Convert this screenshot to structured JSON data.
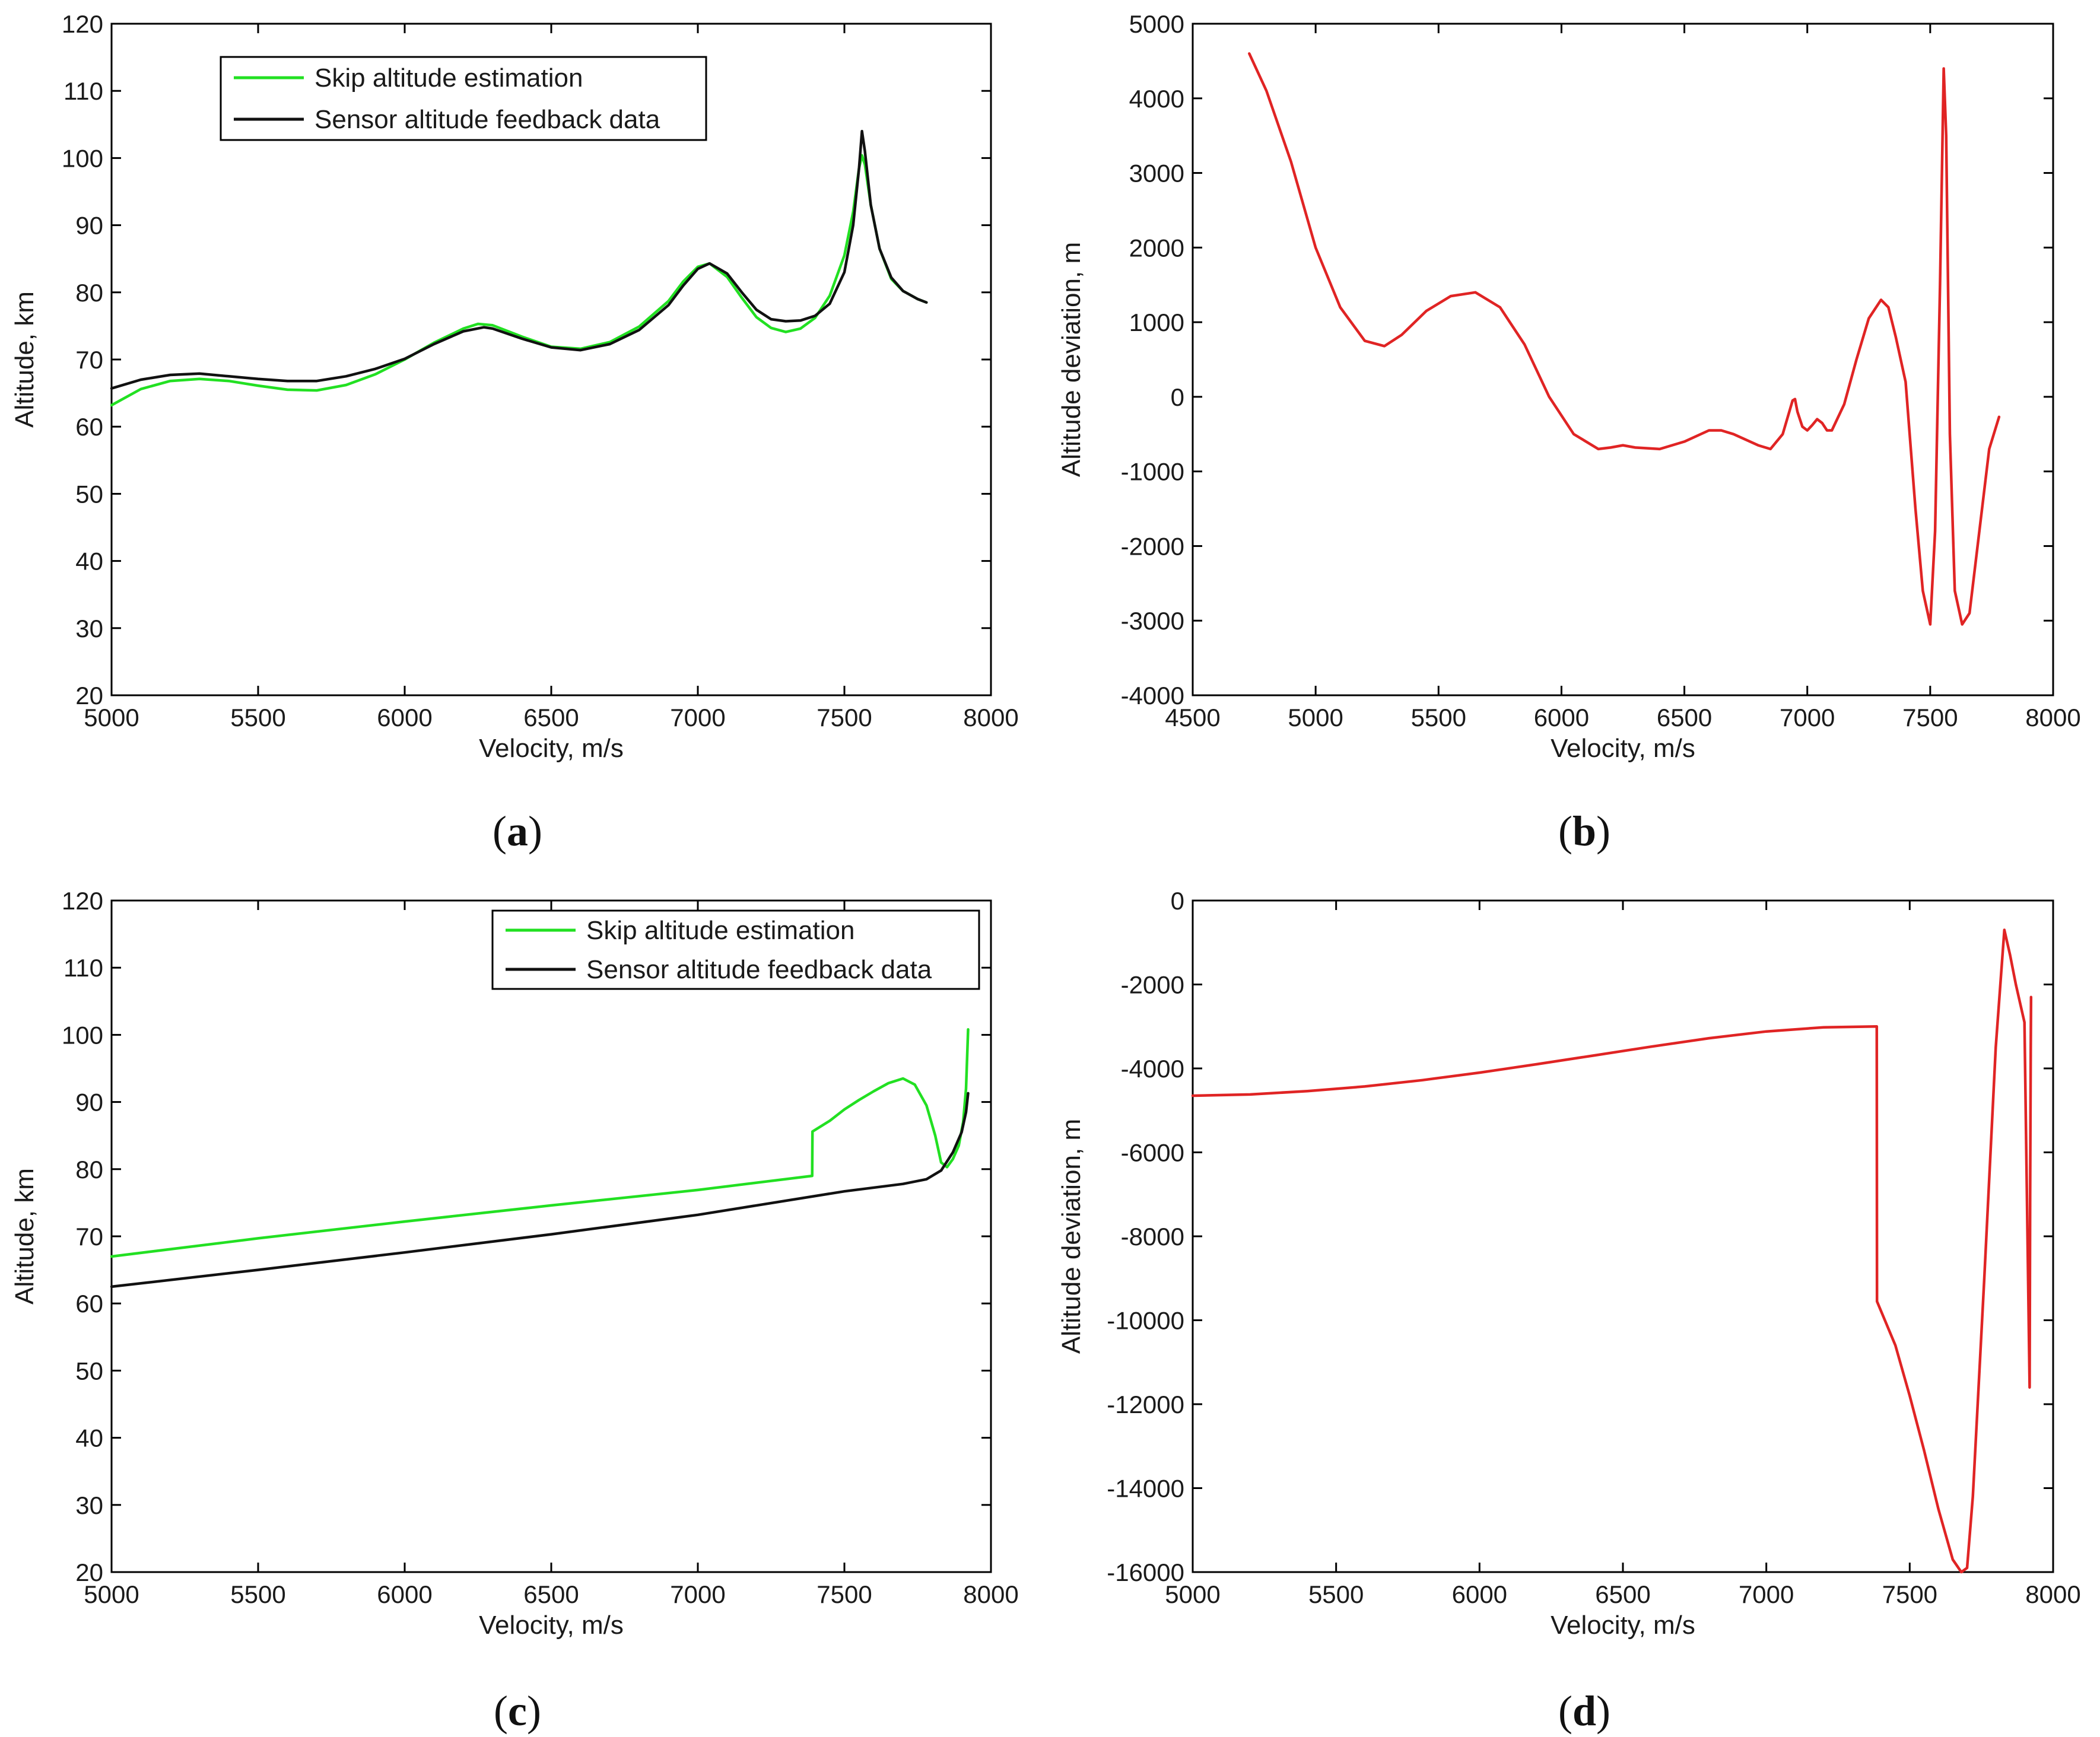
{
  "figure_title": "",
  "colors": {
    "green": "#22e022",
    "black": "#111111",
    "red": "#e02424",
    "axis": "#000000"
  },
  "chart_data": [
    {
      "id": "a",
      "panel_label": "a",
      "type": "line",
      "xlabel": "Velocity, m/s",
      "ylabel": "Altitude, km",
      "xlim": [
        5000,
        8000
      ],
      "ylim": [
        20,
        120
      ],
      "xticks": [
        5000,
        5500,
        6000,
        6500,
        7000,
        7500,
        8000
      ],
      "yticks": [
        20,
        30,
        40,
        50,
        60,
        70,
        80,
        90,
        100,
        110,
        120
      ],
      "legend": {
        "placement": "top-left",
        "entries": [
          "Skip altitude estimation",
          "Sensor altitude feedback data"
        ]
      },
      "series": [
        {
          "name": "Skip altitude estimation",
          "color": "#22e022",
          "x": [
            5000,
            5100,
            5200,
            5300,
            5400,
            5500,
            5600,
            5700,
            5800,
            5900,
            6000,
            6100,
            6200,
            6250,
            6300,
            6400,
            6500,
            6600,
            6700,
            6800,
            6900,
            6950,
            7000,
            7040,
            7100,
            7150,
            7200,
            7250,
            7300,
            7350,
            7400,
            7450,
            7500,
            7530,
            7550,
            7560,
            7570,
            7590,
            7620,
            7660,
            7700,
            7750,
            7780
          ],
          "y": [
            63.2,
            65.6,
            66.8,
            67.1,
            66.8,
            66.1,
            65.5,
            65.4,
            66.2,
            67.8,
            70,
            72.5,
            74.6,
            75.3,
            75.1,
            73.4,
            71.9,
            71.6,
            72.6,
            74.9,
            78.7,
            81.6,
            83.8,
            84.3,
            82.3,
            79.2,
            76.3,
            74.7,
            74.1,
            74.6,
            76.2,
            79.5,
            85.5,
            92,
            98.5,
            100.4,
            99,
            93,
            86.5,
            82,
            80.2,
            79,
            78.5
          ]
        },
        {
          "name": "Sensor altitude feedback data",
          "color": "#111111",
          "x": [
            5000,
            5100,
            5200,
            5300,
            5400,
            5500,
            5600,
            5700,
            5800,
            5900,
            6000,
            6100,
            6200,
            6270,
            6300,
            6400,
            6500,
            6600,
            6700,
            6800,
            6900,
            6950,
            7000,
            7040,
            7100,
            7150,
            7200,
            7250,
            7300,
            7350,
            7400,
            7450,
            7500,
            7530,
            7550,
            7560,
            7570,
            7590,
            7620,
            7660,
            7700,
            7750,
            7780
          ],
          "y": [
            65.7,
            67,
            67.7,
            67.9,
            67.5,
            67.1,
            66.8,
            66.8,
            67.5,
            68.6,
            70.1,
            72.3,
            74.2,
            74.8,
            74.6,
            73.1,
            71.8,
            71.4,
            72.3,
            74.4,
            78.1,
            81,
            83.5,
            84.3,
            82.8,
            80,
            77.4,
            76,
            75.7,
            75.8,
            76.5,
            78.3,
            83,
            90,
            98.5,
            104,
            101,
            93,
            86.5,
            82.2,
            80.2,
            79,
            78.5
          ]
        }
      ]
    },
    {
      "id": "b",
      "panel_label": "b",
      "type": "line",
      "xlabel": "Velocity, m/s",
      "ylabel": "Altitude deviation, m",
      "xlim": [
        4500,
        8000
      ],
      "ylim": [
        -4000,
        5000
      ],
      "xticks": [
        4500,
        5000,
        5500,
        6000,
        6500,
        7000,
        7500,
        8000
      ],
      "yticks": [
        -4000,
        -3000,
        -2000,
        -1000,
        0,
        1000,
        2000,
        3000,
        4000,
        5000
      ],
      "series": [
        {
          "name": "Altitude deviation",
          "color": "#e02424",
          "x": [
            4730,
            4800,
            4900,
            5000,
            5100,
            5200,
            5280,
            5350,
            5450,
            5550,
            5650,
            5750,
            5850,
            5950,
            6050,
            6150,
            6200,
            6250,
            6300,
            6400,
            6500,
            6600,
            6650,
            6700,
            6800,
            6850,
            6900,
            6940,
            6950,
            6960,
            6980,
            7000,
            7020,
            7040,
            7060,
            7080,
            7100,
            7150,
            7200,
            7250,
            7300,
            7330,
            7360,
            7400,
            7440,
            7470,
            7500,
            7520,
            7540,
            7555,
            7565,
            7580,
            7600,
            7630,
            7660,
            7700,
            7740,
            7780
          ],
          "y": [
            4600,
            4100,
            3150,
            2000,
            1200,
            750,
            680,
            830,
            1150,
            1350,
            1400,
            1200,
            700,
            0,
            -500,
            -700,
            -680,
            -650,
            -680,
            -700,
            -600,
            -450,
            -450,
            -500,
            -650,
            -700,
            -500,
            -50,
            -30,
            -200,
            -400,
            -450,
            -380,
            -300,
            -350,
            -450,
            -450,
            -100,
            500,
            1050,
            1300,
            1200,
            800,
            200,
            -1500,
            -2600,
            -3050,
            -1800,
            1500,
            4400,
            3500,
            -500,
            -2600,
            -3050,
            -2900,
            -1800,
            -700,
            -270
          ]
        }
      ]
    },
    {
      "id": "c",
      "panel_label": "c",
      "type": "line",
      "xlabel": "Velocity, m/s",
      "ylabel": "Altitude, km",
      "xlim": [
        5000,
        8000
      ],
      "ylim": [
        20,
        120
      ],
      "xticks": [
        5000,
        5500,
        6000,
        6500,
        7000,
        7500,
        8000
      ],
      "yticks": [
        20,
        30,
        40,
        50,
        60,
        70,
        80,
        90,
        100,
        110,
        120
      ],
      "legend": {
        "placement": "top-right",
        "entries": [
          "Skip altitude estimation",
          "Sensor altitude feedback data"
        ]
      },
      "series": [
        {
          "name": "Skip altitude estimation",
          "color": "#22e022",
          "x": [
            5000,
            5500,
            6000,
            6500,
            7000,
            7390,
            7391,
            7450,
            7500,
            7550,
            7600,
            7650,
            7700,
            7740,
            7780,
            7810,
            7830,
            7850,
            7870,
            7890,
            7905,
            7915,
            7922
          ],
          "y": [
            67,
            69.7,
            72.2,
            74.6,
            76.9,
            79,
            85.6,
            87.2,
            88.9,
            90.3,
            91.6,
            92.8,
            93.5,
            92.6,
            89.5,
            85,
            81,
            80.3,
            81.5,
            83.5,
            87,
            92,
            100.8
          ]
        },
        {
          "name": "Sensor altitude feedback data",
          "color": "#111111",
          "x": [
            5000,
            5500,
            6000,
            6500,
            7000,
            7500,
            7700,
            7780,
            7830,
            7870,
            7900,
            7915,
            7922
          ],
          "y": [
            62.5,
            65,
            67.6,
            70.3,
            73.2,
            76.7,
            77.8,
            78.5,
            79.8,
            82.5,
            85.5,
            88.5,
            91.3
          ]
        }
      ]
    },
    {
      "id": "d",
      "panel_label": "d",
      "type": "line",
      "xlabel": "Velocity, m/s",
      "ylabel": "Altitude deviation, m",
      "xlim": [
        5000,
        8000
      ],
      "ylim": [
        -16000,
        0
      ],
      "xticks": [
        5000,
        5500,
        6000,
        6500,
        7000,
        7500,
        8000
      ],
      "yticks": [
        -16000,
        -14000,
        -12000,
        -10000,
        -8000,
        -6000,
        -4000,
        -2000,
        0
      ],
      "series": [
        {
          "name": "Altitude deviation",
          "color": "#e02424",
          "x": [
            5000,
            5200,
            5400,
            5600,
            5800,
            6000,
            6200,
            6400,
            6600,
            6800,
            7000,
            7200,
            7385,
            7386,
            7450,
            7500,
            7550,
            7600,
            7650,
            7680,
            7700,
            7720,
            7760,
            7800,
            7830,
            7850,
            7870,
            7900,
            7918,
            7920,
            7922,
            7923
          ],
          "y": [
            -4650,
            -4620,
            -4540,
            -4430,
            -4280,
            -4100,
            -3900,
            -3690,
            -3480,
            -3280,
            -3120,
            -3020,
            -3000,
            -9550,
            -10600,
            -11800,
            -13100,
            -14500,
            -15700,
            -16000,
            -15900,
            -14200,
            -9000,
            -3500,
            -700,
            -1300,
            -2000,
            -2900,
            -11600,
            -7000,
            -3500,
            -2300
          ]
        }
      ]
    }
  ]
}
